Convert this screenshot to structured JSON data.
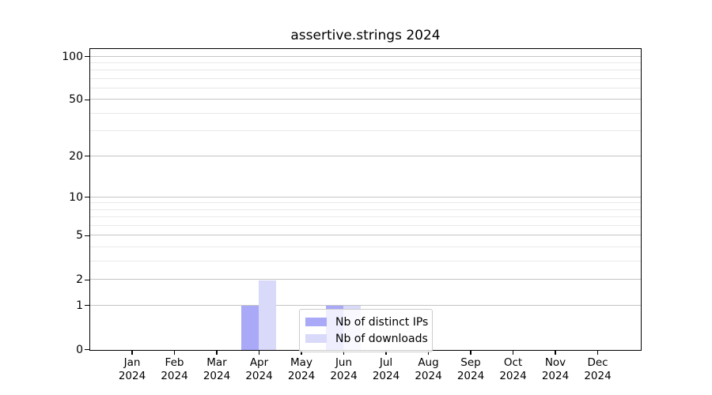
{
  "figure": {
    "background": "#ffffff"
  },
  "chart_data": {
    "type": "bar",
    "title": "assertive.strings 2024",
    "xlabel": "",
    "ylabel": "",
    "categories": [
      "Jan 2024",
      "Feb 2024",
      "Mar 2024",
      "Apr 2024",
      "May 2024",
      "Jun 2024",
      "Jul 2024",
      "Aug 2024",
      "Sep 2024",
      "Oct 2024",
      "Nov 2024",
      "Dec 2024"
    ],
    "series": [
      {
        "name": "Nb of distinct IPs",
        "color": "#a9a9f7",
        "values": [
          0,
          0,
          0,
          1,
          0,
          1,
          0,
          0,
          0,
          0,
          0,
          0
        ]
      },
      {
        "name": "Nb of downloads",
        "color": "#d9d9fa",
        "values": [
          0,
          0,
          0,
          2,
          0,
          1,
          0,
          0,
          0,
          0,
          0,
          0
        ]
      }
    ],
    "y_axis": {
      "scale": "log1p",
      "major_ticks": [
        0,
        1,
        2,
        5,
        10,
        20,
        50,
        100
      ],
      "minor_ticks": [
        3,
        4,
        6,
        7,
        8,
        9,
        30,
        40,
        60,
        70,
        80,
        90
      ],
      "ylim": [
        0,
        112
      ]
    },
    "x_axis": {
      "tick_label_lines": 2
    },
    "grid": {
      "major_color": "#c4c4c4",
      "minor_color": "#e9e9e9"
    },
    "legend": {
      "position": "lower-center"
    }
  }
}
